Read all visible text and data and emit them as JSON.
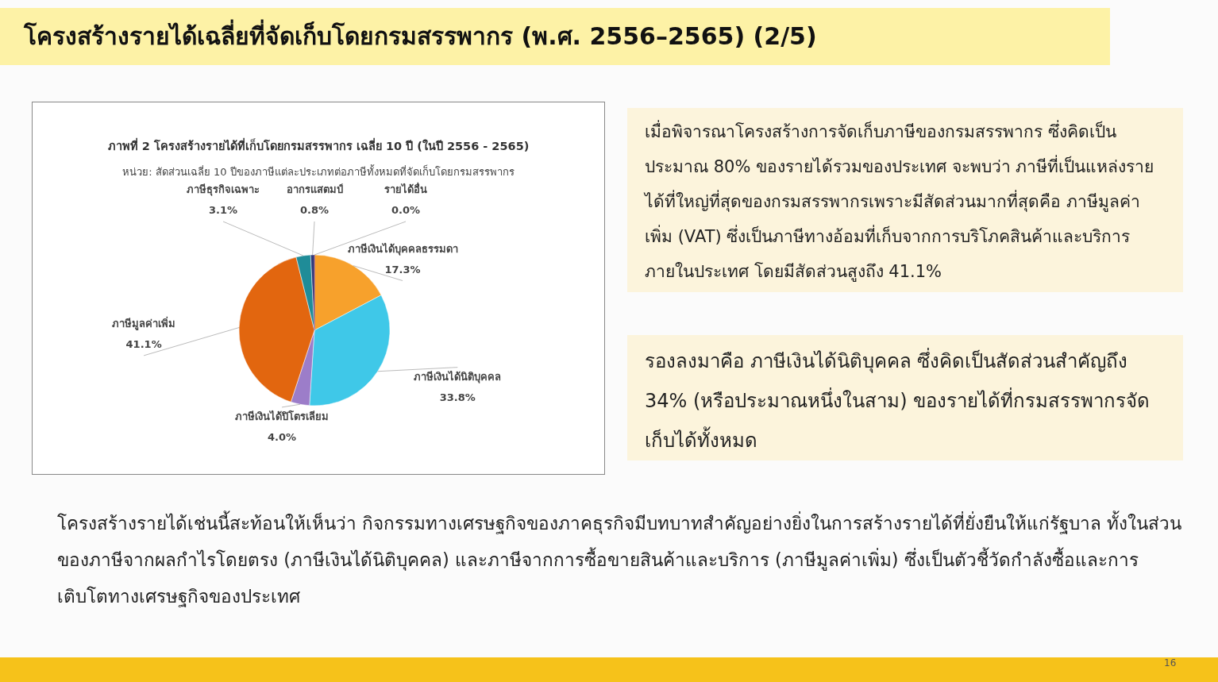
{
  "chart_data": {
    "type": "pie",
    "title": "ภาพที่ 2 โครงสร้างรายได้ที่เก็บโดยกรมสรรพากร เฉลี่ย 10 ปี (ในปี 2556 - 2565)",
    "subtitle": "หน่วย: สัดส่วนเฉลี่ย 10 ปีของภาษีแต่ละประเภทต่อภาษีทั้งหมดที่จัดเก็บโดยกรมสรรพากร",
    "categories": [
      "ภาษีเงินได้บุคคลธรรมดา",
      "ภาษีเงินได้นิติบุคคล",
      "ภาษีเงินได้ปิโตรเลียม",
      "ภาษีมูลค่าเพิ่ม",
      "ภาษีธุรกิจเฉพาะ",
      "อากรแสตมป์",
      "รายได้อื่น"
    ],
    "values": [
      17.3,
      33.8,
      4.0,
      41.1,
      3.1,
      0.8,
      0.0
    ],
    "colors": [
      "#f7a12c",
      "#3fc8e8",
      "#9c7dc9",
      "#e2660f",
      "#1f8c98",
      "#2f3a7a",
      "#7a2a6a"
    ],
    "value_labels": [
      "17.3%",
      "33.8%",
      "4.0%",
      "41.1%",
      "3.1%",
      "0.8%",
      "0.0%"
    ],
    "annotations": [
      "โครงสร้างรายได้เฉลี่ยที่จัดเก็บโดยกรมสรรพากร (พ.ศ. 2556–2565) (2/5)",
      "เมื่อพิจารณาโครงสร้างการจัดเก็บภาษีของกรมสรรพากร ซึ่งคิดเป็นประมาณ 80% ของรายได้รวมของประเทศ จะพบว่า ภาษีที่เป็นแหล่งรายได้ที่ใหญ่ที่สุดของกรมสรรพากรเพราะมีสัดส่วนมากที่สุดคือ ภาษีมูลค่าเพิ่ม (VAT) ซึ่งเป็นภาษีทางอ้อมที่เก็บจากการบริโภคสินค้าและบริการภายในประเทศ โดยมีสัดส่วนสูงถึง 41.1%",
      "รองลงมาคือ ภาษีเงินได้นิติบุคคล ซึ่งคิดเป็นสัดส่วนสำคัญถึง 34% (หรือประมาณหนึ่งในสาม) ของรายได้ที่กรมสรรพากรจัดเก็บได้ทั้งหมด",
      "โครงสร้างรายได้เช่นนี้สะท้อนให้เห็นว่า กิจกรรมทางเศรษฐกิจของภาคธุรกิจมีบทบาทสำคัญอย่างยิ่งในการสร้างรายได้ที่ยั่งยืนให้แก่รัฐบาล ทั้งในส่วนของภาษีจากผลกำไรโดยตรง (ภาษีเงินได้นิติบุคคล) และภาษีจากการซื้อขายสินค้าและบริการ (ภาษีมูลค่าเพิ่ม) ซึ่งเป็นตัวชี้วัดกำลังซื้อและการเติบโตทางเศรษฐกิจของประเทศ",
      "16"
    ]
  }
}
